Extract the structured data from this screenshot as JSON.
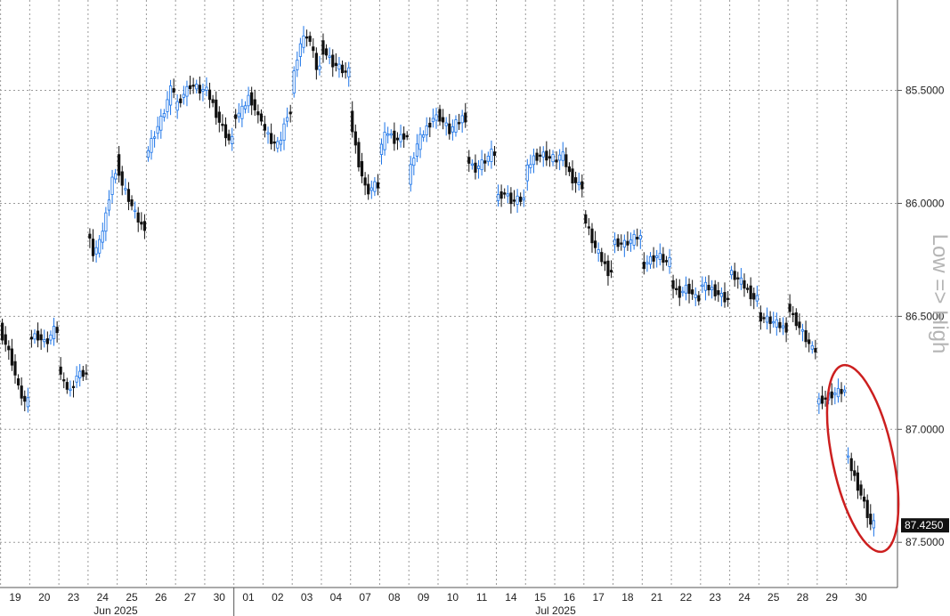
{
  "chart_data": {
    "type": "candlestick",
    "y_axis_inverted": true,
    "ylim": [
      85.1,
      87.7
    ],
    "y_ticks": [
      "85.5000",
      "86.0000",
      "86.5000",
      "87.0000",
      "87.5000"
    ],
    "y_tick_values": [
      85.5,
      86.0,
      86.5,
      87.0,
      87.5
    ],
    "side_label": "Low => High",
    "last_value": 87.425,
    "last_value_label": "87.4250",
    "x_ticks": [
      "19",
      "20",
      "23",
      "24",
      "25",
      "26",
      "27",
      "30",
      "01",
      "02",
      "03",
      "04",
      "07",
      "08",
      "09",
      "10",
      "11",
      "14",
      "15",
      "16",
      "17",
      "18",
      "21",
      "22",
      "23",
      "24",
      "25",
      "28",
      "29",
      "30"
    ],
    "months": [
      {
        "label": "Jun 2025",
        "from": 0,
        "to": 7
      },
      {
        "label": "Jul 2025",
        "from": 8,
        "to": 29
      }
    ],
    "day_values": [
      {
        "day": "19",
        "values": [
          86.55,
          86.62,
          86.7,
          86.82,
          86.88
        ]
      },
      {
        "day": "20",
        "values": [
          86.6,
          86.58,
          86.62,
          86.56
        ]
      },
      {
        "day": "23",
        "values": [
          86.72,
          86.8,
          86.83,
          86.76,
          86.75
        ]
      },
      {
        "day": "24",
        "values": [
          86.12,
          86.22,
          86.18,
          86.05,
          85.88
        ]
      },
      {
        "day": "25",
        "values": [
          85.8,
          85.92,
          85.98,
          86.05,
          86.1
        ]
      },
      {
        "day": "26",
        "values": [
          85.8,
          85.7,
          85.62,
          85.5
        ]
      },
      {
        "day": "27",
        "values": [
          85.58,
          85.52,
          85.47,
          85.5
        ]
      },
      {
        "day": "30",
        "values": [
          85.48,
          85.55,
          85.65,
          85.72
        ]
      },
      {
        "day": "01",
        "values": [
          85.62,
          85.6,
          85.52,
          85.62
        ]
      },
      {
        "day": "02",
        "values": [
          85.65,
          85.72,
          85.75,
          85.6
        ]
      },
      {
        "day": "03",
        "values": [
          85.5,
          85.3,
          85.25,
          85.4
        ]
      },
      {
        "day": "04",
        "values": [
          85.3,
          85.38,
          85.42
        ]
      },
      {
        "day": "07",
        "values": [
          85.6,
          85.8,
          85.95,
          85.92
        ]
      },
      {
        "day": "08",
        "values": [
          85.78,
          85.68,
          85.72,
          85.7
        ]
      },
      {
        "day": "09",
        "values": [
          85.9,
          85.75,
          85.68,
          85.62
        ]
      },
      {
        "day": "10",
        "values": [
          85.6,
          85.68,
          85.62
        ]
      },
      {
        "day": "11",
        "values": [
          85.8,
          85.85,
          85.82,
          85.78
        ]
      },
      {
        "day": "14",
        "values": [
          85.98,
          85.95,
          85.99,
          85.98
        ]
      },
      {
        "day": "15",
        "values": [
          85.88,
          85.8,
          85.78,
          85.8
        ]
      },
      {
        "day": "16",
        "values": [
          85.82,
          85.78,
          85.88,
          85.92
        ]
      },
      {
        "day": "17",
        "values": [
          86.05,
          86.2,
          86.3
        ]
      },
      {
        "day": "18",
        "values": [
          86.17,
          86.18,
          86.15
        ]
      },
      {
        "day": "21",
        "values": [
          86.28,
          86.25,
          86.23,
          86.26
        ]
      },
      {
        "day": "22",
        "values": [
          86.35,
          86.4,
          86.37,
          86.42
        ]
      },
      {
        "day": "23",
        "values": [
          86.36,
          86.38,
          86.42
        ]
      },
      {
        "day": "24",
        "values": [
          86.3,
          86.35,
          86.42
        ]
      },
      {
        "day": "25",
        "values": [
          86.5,
          86.52,
          86.55
        ]
      },
      {
        "day": "28",
        "values": [
          86.45,
          86.55,
          86.65
        ]
      },
      {
        "day": "29",
        "values": [
          86.88,
          86.85,
          86.83
        ]
      },
      {
        "day": "30",
        "values": [
          87.1,
          87.2,
          87.3,
          87.42
        ]
      }
    ]
  }
}
